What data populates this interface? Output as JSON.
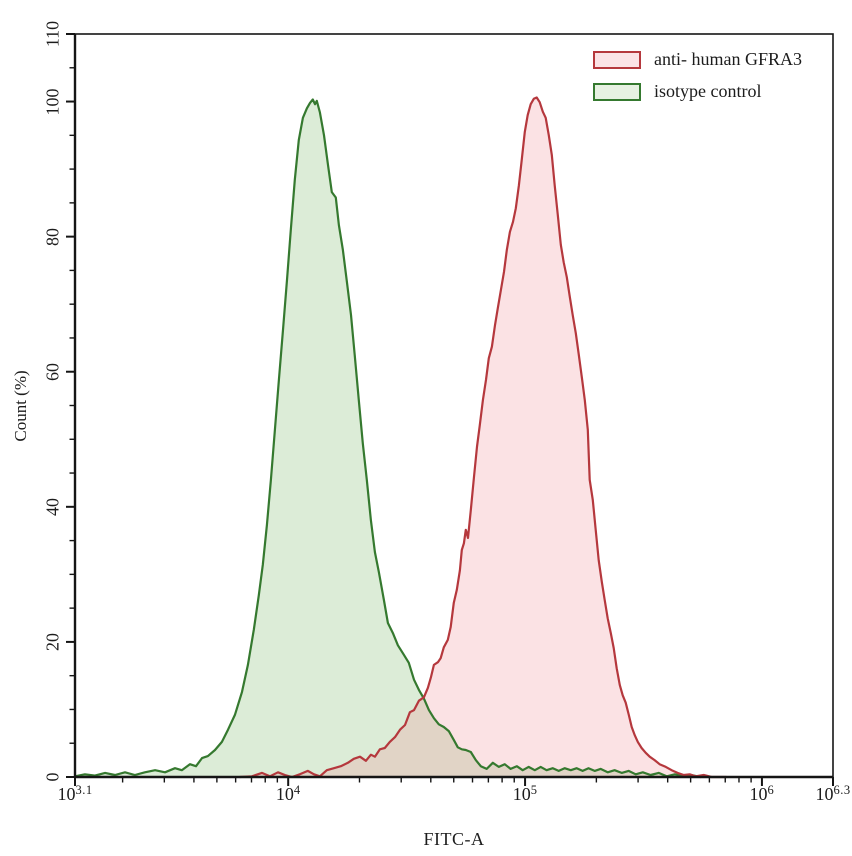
{
  "chart_data": {
    "type": "area",
    "subtype": "flow-cytometry-histogram-overlay",
    "title": "",
    "xlabel": "FITC-A",
    "ylabel": "Count  (%)",
    "x_scale": "log10",
    "x_range_log": [
      3.1,
      6.3
    ],
    "y_range": [
      0,
      110
    ],
    "grid": "off",
    "axis_color": "#151515",
    "x_ticks": [
      {
        "mantissa": "10",
        "exp": "3.1",
        "log": 3.1
      },
      {
        "mantissa": "10",
        "exp": "4",
        "log": 4.0
      },
      {
        "mantissa": "10",
        "exp": "5",
        "log": 5.0
      },
      {
        "mantissa": "10",
        "exp": "6",
        "log": 6.0
      },
      {
        "mantissa": "10",
        "exp": "6.3",
        "log": 6.3
      }
    ],
    "y_ticks": [
      0,
      20,
      40,
      60,
      80,
      100,
      110
    ],
    "y_minor_step": 5,
    "legend": {
      "position": "top-right",
      "items": [
        {
          "label": "anti- human GFRA3",
          "swatch_stroke": "#b5383d",
          "swatch_fill": "#fbe3e6"
        },
        {
          "label": "isotype control",
          "swatch_stroke": "#35792f",
          "swatch_fill": "#e7f1e2"
        }
      ]
    },
    "series": [
      {
        "id": "isotype-control",
        "name": "isotype control",
        "peak_log_x": 4.11,
        "peak_pct": 100,
        "color": "#35792f",
        "fill": "#78b464",
        "fill_opacity": 0.26,
        "points": [
          [
            3.1,
            0.1
          ],
          [
            3.142,
            0.4
          ],
          [
            3.184,
            0.2
          ],
          [
            3.227,
            0.6
          ],
          [
            3.269,
            0.3
          ],
          [
            3.311,
            0.7
          ],
          [
            3.353,
            0.3
          ],
          [
            3.395,
            0.7
          ],
          [
            3.438,
            1.0
          ],
          [
            3.48,
            0.7
          ],
          [
            3.522,
            1.3
          ],
          [
            3.551,
            1.0
          ],
          [
            3.585,
            1.9
          ],
          [
            3.611,
            1.6
          ],
          [
            3.636,
            2.8
          ],
          [
            3.661,
            3.1
          ],
          [
            3.691,
            4.0
          ],
          [
            3.72,
            5.2
          ],
          [
            3.746,
            7.0
          ],
          [
            3.775,
            9.2
          ],
          [
            3.805,
            12.6
          ],
          [
            3.83,
            16.6
          ],
          [
            3.855,
            21.8
          ],
          [
            3.876,
            26.9
          ],
          [
            3.893,
            31.4
          ],
          [
            3.91,
            37.3
          ],
          [
            3.927,
            44.0
          ],
          [
            3.944,
            51.4
          ],
          [
            3.961,
            58.8
          ],
          [
            3.978,
            66.2
          ],
          [
            3.995,
            73.6
          ],
          [
            4.011,
            81.0
          ],
          [
            4.028,
            88.4
          ],
          [
            4.045,
            94.3
          ],
          [
            4.062,
            97.6
          ],
          [
            4.079,
            99.0
          ],
          [
            4.092,
            99.8
          ],
          [
            4.104,
            100.3
          ],
          [
            4.113,
            99.6
          ],
          [
            4.121,
            100.1
          ],
          [
            4.134,
            98.4
          ],
          [
            4.151,
            95.0
          ],
          [
            4.168,
            90.6
          ],
          [
            4.184,
            86.6
          ],
          [
            4.201,
            85.8
          ],
          [
            4.214,
            81.7
          ],
          [
            4.231,
            78.0
          ],
          [
            4.248,
            73.3
          ],
          [
            4.265,
            68.4
          ],
          [
            4.281,
            62.5
          ],
          [
            4.298,
            55.8
          ],
          [
            4.315,
            49.4
          ],
          [
            4.332,
            44.0
          ],
          [
            4.349,
            38.0
          ],
          [
            4.366,
            33.3
          ],
          [
            4.383,
            30.3
          ],
          [
            4.404,
            26.2
          ],
          [
            4.421,
            22.8
          ],
          [
            4.442,
            21.3
          ],
          [
            4.463,
            19.5
          ],
          [
            4.488,
            18.1
          ],
          [
            4.509,
            16.9
          ],
          [
            4.531,
            14.4
          ],
          [
            4.552,
            12.9
          ],
          [
            4.573,
            11.6
          ],
          [
            4.594,
            9.9
          ],
          [
            4.615,
            8.7
          ],
          [
            4.636,
            7.8
          ],
          [
            4.657,
            7.4
          ],
          [
            4.678,
            6.8
          ],
          [
            4.699,
            5.5
          ],
          [
            4.716,
            4.4
          ],
          [
            4.733,
            4.1
          ],
          [
            4.75,
            4.0
          ],
          [
            4.771,
            3.7
          ],
          [
            4.792,
            2.5
          ],
          [
            4.813,
            1.6
          ],
          [
            4.838,
            1.2
          ],
          [
            4.864,
            2.1
          ],
          [
            4.889,
            1.5
          ],
          [
            4.914,
            1.9
          ],
          [
            4.939,
            1.2
          ],
          [
            4.965,
            1.6
          ],
          [
            4.99,
            1.0
          ],
          [
            5.015,
            1.5
          ],
          [
            5.041,
            1.0
          ],
          [
            5.066,
            1.5
          ],
          [
            5.091,
            1.0
          ],
          [
            5.117,
            1.3
          ],
          [
            5.142,
            0.9
          ],
          [
            5.167,
            1.3
          ],
          [
            5.193,
            1.0
          ],
          [
            5.218,
            1.3
          ],
          [
            5.243,
            0.9
          ],
          [
            5.268,
            1.3
          ],
          [
            5.294,
            0.9
          ],
          [
            5.319,
            1.2
          ],
          [
            5.349,
            0.7
          ],
          [
            5.378,
            1.0
          ],
          [
            5.408,
            0.6
          ],
          [
            5.437,
            0.9
          ],
          [
            5.467,
            0.4
          ],
          [
            5.497,
            0.7
          ],
          [
            5.53,
            0.3
          ],
          [
            5.564,
            0.6
          ],
          [
            5.598,
            0.1
          ],
          [
            5.632,
            0.4
          ],
          [
            5.666,
            0.1
          ],
          [
            5.699,
            0.3
          ],
          [
            5.742,
            0.0
          ]
        ]
      },
      {
        "id": "anti-human-gfra3",
        "name": "anti- human GFRA3",
        "peak_log_x": 5.05,
        "peak_pct": 100,
        "color": "#b5383d",
        "fill": "#f08a93",
        "fill_opacity": 0.25,
        "points": [
          [
            3.796,
            0.0
          ],
          [
            3.847,
            0.1
          ],
          [
            3.889,
            0.6
          ],
          [
            3.923,
            0.1
          ],
          [
            3.957,
            0.7
          ],
          [
            3.986,
            0.3
          ],
          [
            4.016,
            0.0
          ],
          [
            4.049,
            0.4
          ],
          [
            4.083,
            0.9
          ],
          [
            4.109,
            0.4
          ],
          [
            4.134,
            0.1
          ],
          [
            4.163,
            1.0
          ],
          [
            4.193,
            1.3
          ],
          [
            4.222,
            1.6
          ],
          [
            4.252,
            2.1
          ],
          [
            4.277,
            2.7
          ],
          [
            4.303,
            3.0
          ],
          [
            4.328,
            2.4
          ],
          [
            4.349,
            3.3
          ],
          [
            4.366,
            3.0
          ],
          [
            4.387,
            4.1
          ],
          [
            4.408,
            4.3
          ],
          [
            4.429,
            5.2
          ],
          [
            4.451,
            5.9
          ],
          [
            4.472,
            7.0
          ],
          [
            4.493,
            7.7
          ],
          [
            4.514,
            9.6
          ],
          [
            4.531,
            9.9
          ],
          [
            4.552,
            11.3
          ],
          [
            4.573,
            11.8
          ],
          [
            4.59,
            13.2
          ],
          [
            4.603,
            14.8
          ],
          [
            4.615,
            16.6
          ],
          [
            4.632,
            17.0
          ],
          [
            4.644,
            17.6
          ],
          [
            4.657,
            19.2
          ],
          [
            4.674,
            20.3
          ],
          [
            4.686,
            22.2
          ],
          [
            4.699,
            25.8
          ],
          [
            4.712,
            27.7
          ],
          [
            4.725,
            30.6
          ],
          [
            4.733,
            33.6
          ],
          [
            4.742,
            34.6
          ],
          [
            4.75,
            36.6
          ],
          [
            4.759,
            35.4
          ],
          [
            4.771,
            39.5
          ],
          [
            4.784,
            44.3
          ],
          [
            4.797,
            48.9
          ],
          [
            4.809,
            52.1
          ],
          [
            4.822,
            55.8
          ],
          [
            4.835,
            58.8
          ],
          [
            4.847,
            62.0
          ],
          [
            4.86,
            63.7
          ],
          [
            4.873,
            66.9
          ],
          [
            4.885,
            69.4
          ],
          [
            4.898,
            72.1
          ],
          [
            4.911,
            74.8
          ],
          [
            4.923,
            78.0
          ],
          [
            4.936,
            80.7
          ],
          [
            4.949,
            82.2
          ],
          [
            4.961,
            84.2
          ],
          [
            4.974,
            87.6
          ],
          [
            4.986,
            91.3
          ],
          [
            4.999,
            95.5
          ],
          [
            5.011,
            98.0
          ],
          [
            5.024,
            99.6
          ],
          [
            5.037,
            100.4
          ],
          [
            5.049,
            100.6
          ],
          [
            5.062,
            99.9
          ],
          [
            5.075,
            98.5
          ],
          [
            5.087,
            97.6
          ],
          [
            5.1,
            95.0
          ],
          [
            5.113,
            92.1
          ],
          [
            5.125,
            87.6
          ],
          [
            5.138,
            83.2
          ],
          [
            5.151,
            78.8
          ],
          [
            5.163,
            76.2
          ],
          [
            5.176,
            74.0
          ],
          [
            5.189,
            71.1
          ],
          [
            5.201,
            68.4
          ],
          [
            5.214,
            65.7
          ],
          [
            5.227,
            62.5
          ],
          [
            5.24,
            59.1
          ],
          [
            5.252,
            55.8
          ],
          [
            5.265,
            51.4
          ],
          [
            5.273,
            44.0
          ],
          [
            5.286,
            41.0
          ],
          [
            5.298,
            36.6
          ],
          [
            5.311,
            32.1
          ],
          [
            5.324,
            28.9
          ],
          [
            5.336,
            26.2
          ],
          [
            5.349,
            23.5
          ],
          [
            5.362,
            21.3
          ],
          [
            5.374,
            19.1
          ],
          [
            5.387,
            16.1
          ],
          [
            5.4,
            13.6
          ],
          [
            5.412,
            12.1
          ],
          [
            5.425,
            11.0
          ],
          [
            5.438,
            9.2
          ],
          [
            5.45,
            7.4
          ],
          [
            5.463,
            6.2
          ],
          [
            5.476,
            5.2
          ],
          [
            5.492,
            4.3
          ],
          [
            5.509,
            3.6
          ],
          [
            5.526,
            3.0
          ],
          [
            5.547,
            2.5
          ],
          [
            5.568,
            1.9
          ],
          [
            5.594,
            1.5
          ],
          [
            5.619,
            1.0
          ],
          [
            5.644,
            0.6
          ],
          [
            5.67,
            0.3
          ],
          [
            5.695,
            0.4
          ],
          [
            5.72,
            0.1
          ],
          [
            5.754,
            0.3
          ],
          [
            5.787,
            0.0
          ],
          [
            5.85,
            0.0
          ]
        ]
      }
    ]
  }
}
